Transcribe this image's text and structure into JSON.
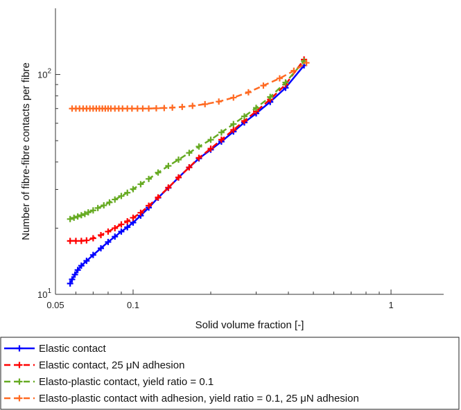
{
  "chart_data": {
    "type": "line",
    "xlabel": "Solid volume fraction [-]",
    "ylabel": "Number of fibre-fibre contacts per fibre",
    "xscale": "log",
    "yscale": "log",
    "xlim": [
      0.05,
      1.6
    ],
    "ylim": [
      10,
      200
    ],
    "xticks": [
      {
        "value": 0.05,
        "label": "0.05"
      },
      {
        "value": 0.1,
        "label": "0.1"
      },
      {
        "value": 1,
        "label": "1"
      }
    ],
    "yticks": [
      {
        "value": 10,
        "base": "10",
        "exp": "1"
      },
      {
        "value": 100,
        "base": "10",
        "exp": "2"
      }
    ],
    "grid": false,
    "legend_position": "below",
    "series": [
      {
        "name": "Elastic contact",
        "color": "#0000ff",
        "style": "solid",
        "marker": "plus",
        "x": [
          0.057,
          0.058,
          0.0595,
          0.061,
          0.063,
          0.066,
          0.07,
          0.075,
          0.08,
          0.085,
          0.09,
          0.095,
          0.1,
          0.107,
          0.115,
          0.125,
          0.137,
          0.15,
          0.165,
          0.18,
          0.2,
          0.22,
          0.245,
          0.27,
          0.3,
          0.34,
          0.39,
          0.46
        ],
        "y": [
          11.2,
          11.7,
          12.3,
          12.9,
          13.5,
          14.2,
          15.1,
          16.2,
          17.3,
          18.3,
          19.3,
          20.2,
          21.2,
          22.8,
          24.8,
          27.5,
          30.5,
          34.0,
          37.8,
          41.5,
          45.5,
          49.5,
          55.0,
          60.5,
          66.5,
          75.0,
          87.0,
          110.0
        ]
      },
      {
        "name": "Elastic contact, 25 μN adhesion",
        "color": "#ff0000",
        "style": "dashed",
        "marker": "plus",
        "x": [
          0.057,
          0.06,
          0.063,
          0.066,
          0.07,
          0.075,
          0.08,
          0.085,
          0.09,
          0.095,
          0.1,
          0.107,
          0.115,
          0.125,
          0.137,
          0.15,
          0.165,
          0.18,
          0.2,
          0.22,
          0.245,
          0.27,
          0.3,
          0.34,
          0.39,
          0.46
        ],
        "y": [
          17.5,
          17.5,
          17.5,
          17.6,
          18.0,
          18.6,
          19.3,
          20.0,
          20.8,
          21.5,
          22.3,
          23.5,
          25.3,
          27.6,
          30.6,
          34.0,
          37.8,
          41.8,
          46.0,
          50.5,
          56.0,
          61.5,
          68.0,
          77.0,
          90.0,
          117.0
        ]
      },
      {
        "name": "Elasto-plastic contact, yield ratio = 0.1",
        "color": "#66aa22",
        "style": "dashed",
        "marker": "plus",
        "x": [
          0.057,
          0.059,
          0.061,
          0.063,
          0.065,
          0.067,
          0.07,
          0.073,
          0.077,
          0.081,
          0.085,
          0.09,
          0.095,
          0.1,
          0.107,
          0.115,
          0.125,
          0.137,
          0.15,
          0.165,
          0.18,
          0.2,
          0.22,
          0.245,
          0.27,
          0.3,
          0.34,
          0.39,
          0.46
        ],
        "y": [
          22.0,
          22.3,
          22.6,
          22.9,
          23.2,
          23.6,
          24.1,
          24.7,
          25.4,
          26.2,
          27.0,
          28.0,
          29.0,
          30.1,
          31.7,
          33.5,
          35.8,
          38.4,
          41.0,
          44.0,
          47.0,
          50.5,
          54.5,
          59.5,
          64.5,
          70.5,
          79.0,
          92.0,
          115.0
        ]
      },
      {
        "name": "Elasto-plastic contact with adhesion, yield ratio = 0.1, 25 μN adhesion",
        "color": "#ff6a22",
        "style": "dashed",
        "marker": "plus",
        "x": [
          0.058,
          0.06,
          0.062,
          0.064,
          0.066,
          0.068,
          0.07,
          0.072,
          0.074,
          0.076,
          0.078,
          0.08,
          0.082,
          0.085,
          0.088,
          0.091,
          0.095,
          0.099,
          0.104,
          0.109,
          0.115,
          0.123,
          0.132,
          0.142,
          0.155,
          0.17,
          0.19,
          0.215,
          0.245,
          0.28,
          0.32,
          0.37,
          0.42,
          0.47
        ],
        "y": [
          70.0,
          70.0,
          70.0,
          70.0,
          70.0,
          70.0,
          70.0,
          70.0,
          70.0,
          70.0,
          70.0,
          70.0,
          70.0,
          70.0,
          70.0,
          70.0,
          70.0,
          70.0,
          70.0,
          70.0,
          70.0,
          70.2,
          70.4,
          70.7,
          71.2,
          72.0,
          73.3,
          75.3,
          78.5,
          83.0,
          89.0,
          96.0,
          104.0,
          113.0
        ]
      }
    ]
  }
}
